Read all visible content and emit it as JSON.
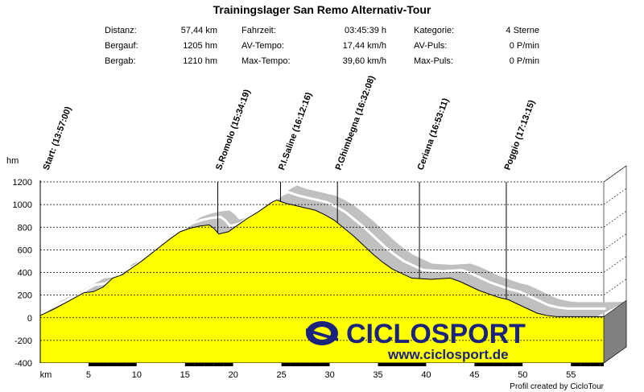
{
  "title": "Trainingslager San Remo Alternativ-Tour",
  "stats": [
    {
      "label": "Distanz:",
      "value": "57,44 km"
    },
    {
      "label": "Bergauf:",
      "value": "1205 hm"
    },
    {
      "label": "Bergab:",
      "value": "1210 hm"
    },
    {
      "label": "Fahrzeit:",
      "value": "03:45:39 h"
    },
    {
      "label": "AV-Tempo:",
      "value": "17,44 km/h"
    },
    {
      "label": "Max-Tempo:",
      "value": "39,60 km/h"
    },
    {
      "label": "Kategorie:",
      "value": "4 Sterne"
    },
    {
      "label": "AV-Puls:",
      "value": "0 P/min"
    },
    {
      "label": "Max-Puls:",
      "value": "0 P/min"
    }
  ],
  "logo": {
    "brand": "CICLOSPORT",
    "url": "www.ciclosport.de"
  },
  "credit": "Profil created by CicloTour",
  "colors": {
    "fill": "#ffff00",
    "shadow": "#c0c0c0",
    "grid": "#000000"
  },
  "chart_data": {
    "type": "area",
    "title": "Trainingslager San Remo Alternativ-Tour",
    "xlabel": "km",
    "ylabel": "hm",
    "xlim": [
      0,
      58.4
    ],
    "ylim": [
      -400,
      1200
    ],
    "xticks": [
      5,
      10,
      15,
      20,
      25,
      30,
      35,
      40,
      45,
      50,
      55
    ],
    "yticks": [
      -400,
      -200,
      0,
      200,
      400,
      600,
      800,
      1000,
      1200
    ],
    "grid": true,
    "series": [
      {
        "x": [
          0,
          1.5,
          3,
          4.5,
          5.5,
          6.5,
          7.5,
          8.5,
          9.5,
          10.5,
          12,
          13.5,
          14.5,
          15.5,
          16.5,
          17.5,
          18,
          18.5,
          19.5,
          20.5,
          21.5,
          22.5,
          23.5,
          24,
          24.5,
          25.5,
          26.5,
          27.5,
          28.5,
          29.5,
          30.5,
          31.5,
          32.5,
          33.5,
          34.5,
          35.5,
          36.5,
          37.5,
          38.5,
          39.5,
          40.5,
          41.5,
          42.5,
          43.5,
          44.5,
          45.5,
          46.5,
          47.5,
          48.5,
          49.5,
          50.5,
          51.5,
          52.5,
          53.5,
          54.5,
          55.5,
          56.5,
          57.44
        ],
        "values": [
          20,
          80,
          150,
          220,
          230,
          270,
          350,
          380,
          440,
          500,
          600,
          700,
          760,
          790,
          810,
          820,
          790,
          740,
          760,
          820,
          880,
          930,
          990,
          1020,
          1040,
          1010,
          990,
          970,
          950,
          910,
          860,
          790,
          720,
          640,
          560,
          490,
          430,
          390,
          350,
          345,
          340,
          345,
          350,
          320,
          280,
          240,
          210,
          180,
          160,
          120,
          80,
          40,
          20,
          10,
          10,
          10,
          10,
          10
        ]
      }
    ],
    "annotations": [
      {
        "x": 0,
        "label": "Start: (13:57:00)"
      },
      {
        "x": 18.4,
        "label": "S.Romolo (15:34:19)"
      },
      {
        "x": 24.9,
        "label": "P.I.Saline (16:12:16)"
      },
      {
        "x": 30.8,
        "label": "P.Ghimbegna (16:32:08)"
      },
      {
        "x": 39.3,
        "label": "Ceriana (16:53:11)"
      },
      {
        "x": 48.3,
        "label": "Poggio (17:13:15)"
      }
    ]
  }
}
